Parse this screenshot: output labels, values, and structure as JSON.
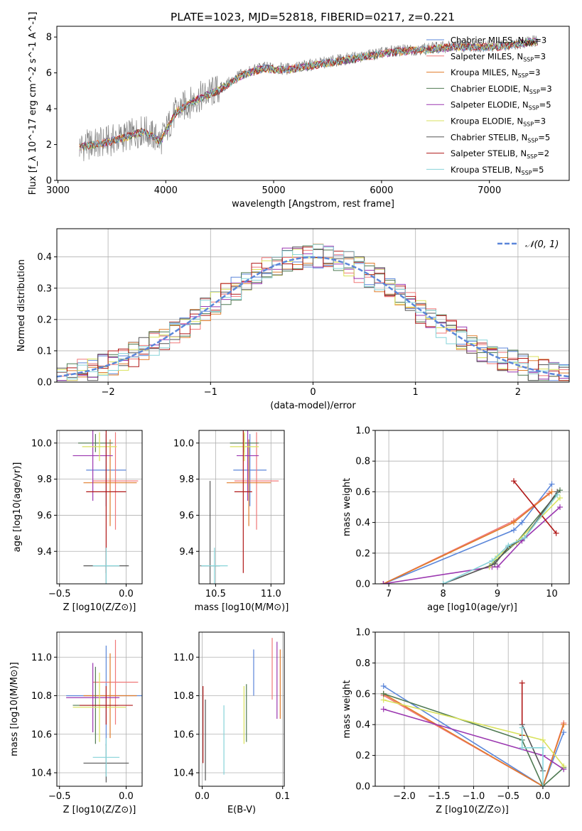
{
  "figure": {
    "title": "PLATE=1023, MJD=52818, FIBERID=0217, z=0.221"
  },
  "colors": {
    "chabrier_miles": "#5b86d9",
    "salpeter_miles": "#f07878",
    "kroupa_miles": "#e07b2a",
    "chabrier_elodie": "#4f7a52",
    "salpeter_elodie": "#9b37b0",
    "kroupa_elodie": "#d9e25c",
    "chabrier_stelib": "#555555",
    "salpeter_stelib": "#b01818",
    "kroupa_stelib": "#86d3d8",
    "normal_curve": "#5b86d9",
    "raw_spectrum": "#808080"
  },
  "chart_data": [
    {
      "id": "spectrum",
      "type": "line",
      "xlabel": "wavelength [Angstrom, rest frame]",
      "ylabel": "Flux [f_λ 10^-17 erg cm^-2 s^-1 A^-1]",
      "xlim": [
        2990,
        7740
      ],
      "ylim": [
        0,
        8.6
      ],
      "xticks": [
        3000,
        4000,
        5000,
        6000,
        7000
      ],
      "yticks": [
        0,
        2,
        4,
        6,
        8
      ],
      "legend_position": "top-right",
      "legend": [
        {
          "label": "Chabrier MILES, N",
          "sub": "SSP",
          "suffix": "=3"
        },
        {
          "label": "Salpeter MILES, N",
          "sub": "SSP",
          "suffix": "=3"
        },
        {
          "label": "Kroupa MILES, N",
          "sub": "SSP",
          "suffix": "=3"
        },
        {
          "label": "Chabrier ELODIE, N",
          "sub": "SSP",
          "suffix": "=3"
        },
        {
          "label": "Salpeter ELODIE, N",
          "sub": "SSP",
          "suffix": "=5"
        },
        {
          "label": "Kroupa ELODIE, N",
          "sub": "SSP",
          "suffix": "=3"
        },
        {
          "label": "Chabrier STELIB, N",
          "sub": "SSP",
          "suffix": "=5"
        },
        {
          "label": "Salpeter STELIB, N",
          "sub": "SSP",
          "suffix": "=2"
        },
        {
          "label": "Kroupa STELIB, N",
          "sub": "SSP",
          "suffix": "=5"
        }
      ],
      "continuum": [
        [
          3200,
          1.9
        ],
        [
          3400,
          2.1
        ],
        [
          3600,
          2.4
        ],
        [
          3800,
          2.8
        ],
        [
          3950,
          2.2
        ],
        [
          4100,
          3.9
        ],
        [
          4300,
          4.6
        ],
        [
          4500,
          5.1
        ],
        [
          4700,
          5.9
        ],
        [
          4900,
          6.3
        ],
        [
          5100,
          6.2
        ],
        [
          5300,
          6.4
        ],
        [
          5500,
          6.6
        ],
        [
          5700,
          6.8
        ],
        [
          5900,
          7.0
        ],
        [
          6100,
          7.2
        ],
        [
          6300,
          7.3
        ],
        [
          6500,
          7.4
        ],
        [
          6700,
          7.5
        ],
        [
          6900,
          7.5
        ],
        [
          7100,
          7.5
        ],
        [
          7300,
          7.7
        ],
        [
          7450,
          7.8
        ]
      ]
    },
    {
      "id": "residuals",
      "type": "line",
      "xlabel": "(data-model)/error",
      "ylabel": "Normed distribution",
      "xlim": [
        -2.5,
        2.5
      ],
      "ylim": [
        0,
        0.49
      ],
      "xticks": [
        -2,
        -1,
        0,
        1,
        2
      ],
      "yticks": [
        0.0,
        0.1,
        0.2,
        0.3,
        0.4
      ],
      "grid": true,
      "legend_position": "top-right",
      "legend": [
        {
          "label": "𝒩(0, 1)"
        }
      ],
      "normal_curve": {
        "mean": 0,
        "sigma": 1
      }
    },
    {
      "id": "age_vs_Z",
      "type": "scatter",
      "xlabel": "Z [log10(Z/Z⊙)]",
      "ylabel": "age [log10(age/yr)]",
      "xlim": [
        -0.52,
        0.12
      ],
      "ylim": [
        9.22,
        10.07
      ],
      "xticks": [
        -0.5,
        0.0
      ],
      "yticks": [
        9.4,
        9.6,
        9.8,
        10.0
      ],
      "grid": true,
      "points": [
        {
          "s": "chabrier_miles",
          "x": -0.15,
          "xe": 0.15,
          "y": 9.85,
          "ye": 0.2
        },
        {
          "s": "salpeter_miles",
          "x": -0.08,
          "xe": 0.17,
          "y": 9.79,
          "ye": 0.27
        },
        {
          "s": "kroupa_miles",
          "x": -0.12,
          "xe": 0.2,
          "y": 9.78,
          "ye": 0.24
        },
        {
          "s": "chabrier_elodie",
          "x": -0.23,
          "xe": 0.13,
          "y": 10.0,
          "ye": 0.05
        },
        {
          "s": "salpeter_elodie",
          "x": -0.25,
          "xe": 0.15,
          "y": 9.93,
          "ye": 0.25
        },
        {
          "s": "kroupa_elodie",
          "x": -0.2,
          "xe": 0.13,
          "y": 9.98,
          "ye": 0.08
        },
        {
          "s": "chabrier_stelib",
          "x": -0.15,
          "xe": 0.17,
          "y": 9.32,
          "ye": 0.1
        },
        {
          "s": "salpeter_stelib",
          "x": -0.15,
          "xe": 0.15,
          "y": 9.73,
          "ye": 0.45
        },
        {
          "s": "kroupa_stelib",
          "x": -0.15,
          "xe": 0.1,
          "y": 9.32,
          "ye": 0.1
        }
      ]
    },
    {
      "id": "age_vs_mass",
      "type": "scatter",
      "xlabel": "mass [log10(M/M⊙)]",
      "ylabel": "",
      "xlim": [
        10.35,
        11.12
      ],
      "ylim": [
        9.22,
        10.07
      ],
      "xticks": [
        10.5,
        11.0
      ],
      "yticks": [
        9.4,
        9.6,
        9.8,
        10.0
      ],
      "grid": true,
      "points": [
        {
          "s": "chabrier_miles",
          "x": 10.81,
          "xe": 0.15,
          "y": 9.85,
          "ye": 0.2
        },
        {
          "s": "salpeter_miles",
          "x": 10.87,
          "xe": 0.2,
          "y": 9.79,
          "ye": 0.27
        },
        {
          "s": "kroupa_miles",
          "x": 10.8,
          "xe": 0.2,
          "y": 9.78,
          "ye": 0.24
        },
        {
          "s": "chabrier_elodie",
          "x": 10.76,
          "xe": 0.13,
          "y": 10.0,
          "ye": 0.05
        },
        {
          "s": "salpeter_elodie",
          "x": 10.79,
          "xe": 0.1,
          "y": 9.93,
          "ye": 0.25
        },
        {
          "s": "kroupa_elodie",
          "x": 10.76,
          "xe": 0.13,
          "y": 9.98,
          "ye": 0.08
        },
        {
          "s": "chabrier_stelib",
          "x": 10.45,
          "xe": 0.09,
          "y": 9.32,
          "ye": 0.47
        },
        {
          "s": "salpeter_stelib",
          "x": 10.75,
          "xe": 0.08,
          "y": 9.73,
          "ye": 0.45
        },
        {
          "s": "kroupa_stelib",
          "x": 10.49,
          "xe": 0.12,
          "y": 9.32,
          "ye": 0.1
        }
      ]
    },
    {
      "id": "mass_weight_vs_age",
      "type": "line",
      "xlabel": "age [log10(age/yr)]",
      "ylabel": "mass weight",
      "xlim": [
        6.75,
        10.32
      ],
      "ylim": [
        0,
        1
      ],
      "xticks": [
        7,
        8,
        9,
        10
      ],
      "yticks": [
        0.0,
        0.2,
        0.4,
        0.6,
        0.8,
        1.0
      ],
      "grid": true,
      "series": [
        {
          "s": "chabrier_miles",
          "x": [
            6.9,
            9.3,
            9.45,
            10.0
          ],
          "y": [
            0.0,
            0.35,
            0.4,
            0.65
          ]
        },
        {
          "s": "salpeter_miles",
          "x": [
            6.9,
            9.3,
            9.95
          ],
          "y": [
            0.0,
            0.41,
            0.59
          ]
        },
        {
          "s": "kroupa_miles",
          "x": [
            6.9,
            9.3,
            10.0
          ],
          "y": [
            0.0,
            0.4,
            0.6
          ]
        },
        {
          "s": "chabrier_elodie",
          "x": [
            8.9,
            9.35,
            10.15
          ],
          "y": [
            0.13,
            0.27,
            0.61
          ]
        },
        {
          "s": "salpeter_elodie",
          "x": [
            6.9,
            8.9,
            9.0,
            9.45,
            10.15
          ],
          "y": [
            0.0,
            0.11,
            0.11,
            0.28,
            0.5
          ]
        },
        {
          "s": "kroupa_elodie",
          "x": [
            8.85,
            9.0,
            9.35,
            10.15
          ],
          "y": [
            0.11,
            0.18,
            0.27,
            0.56
          ]
        },
        {
          "s": "chabrier_stelib",
          "x": [
            8.0,
            8.95,
            9.2,
            9.5,
            10.1
          ],
          "y": [
            0.0,
            0.13,
            0.24,
            0.3,
            0.6
          ]
        },
        {
          "s": "salpeter_stelib",
          "x": [
            9.3,
            10.08
          ],
          "y": [
            0.67,
            0.33
          ]
        },
        {
          "s": "kroupa_stelib",
          "x": [
            8.0,
            8.9,
            9.2,
            9.5,
            10.1
          ],
          "y": [
            0.0,
            0.15,
            0.25,
            0.3,
            0.58
          ]
        }
      ]
    },
    {
      "id": "mass_vs_Z",
      "type": "scatter",
      "xlabel": "Z [log10(Z/Z⊙)]",
      "ylabel": "mass [log10(M/M⊙)]",
      "xlim": [
        -0.52,
        0.12
      ],
      "ylim": [
        10.33,
        11.13
      ],
      "xticks": [
        -0.5,
        0.0
      ],
      "yticks": [
        10.4,
        10.6,
        10.8,
        11.0
      ],
      "grid": true,
      "points": [
        {
          "s": "chabrier_miles",
          "x": -0.15,
          "xe": 0.3,
          "y": 10.8,
          "ye": 0.26
        },
        {
          "s": "salpeter_miles",
          "x": -0.08,
          "xe": 0.17,
          "y": 10.87,
          "ye": 0.22
        },
        {
          "s": "kroupa_miles",
          "x": -0.12,
          "xe": 0.2,
          "y": 10.8,
          "ye": 0.22
        },
        {
          "s": "chabrier_elodie",
          "x": -0.23,
          "xe": 0.17,
          "y": 10.75,
          "ye": 0.2
        },
        {
          "s": "salpeter_elodie",
          "x": -0.25,
          "xe": 0.2,
          "y": 10.79,
          "ye": 0.18
        },
        {
          "s": "kroupa_elodie",
          "x": -0.2,
          "xe": 0.2,
          "y": 10.74,
          "ye": 0.18
        },
        {
          "s": "chabrier_stelib",
          "x": -0.15,
          "xe": 0.17,
          "y": 10.45,
          "ye": 0.1
        },
        {
          "s": "salpeter_stelib",
          "x": -0.15,
          "xe": 0.2,
          "y": 10.75,
          "ye": 0.1
        },
        {
          "s": "kroupa_stelib",
          "x": -0.15,
          "xe": 0.1,
          "y": 10.48,
          "ye": 0.1
        }
      ]
    },
    {
      "id": "mass_vs_EBV",
      "type": "scatter",
      "xlabel": "E(B-V)",
      "ylabel": "",
      "xlim": [
        -0.004,
        0.102
      ],
      "ylim": [
        10.33,
        11.13
      ],
      "xticks": [
        0.0,
        0.1
      ],
      "yticks": [
        10.4,
        10.6,
        10.8,
        11.0
      ],
      "grid": true,
      "points": [
        {
          "s": "chabrier_miles",
          "x": 0.064,
          "xe": 0,
          "y": 10.92,
          "ye": 0.12
        },
        {
          "s": "salpeter_miles",
          "x": 0.087,
          "xe": 0,
          "y": 10.94,
          "ye": 0.16
        },
        {
          "s": "kroupa_miles",
          "x": 0.097,
          "xe": 0,
          "y": 10.86,
          "ye": 0.18
        },
        {
          "s": "chabrier_elodie",
          "x": 0.055,
          "xe": 0,
          "y": 10.71,
          "ye": 0.15
        },
        {
          "s": "salpeter_elodie",
          "x": 0.093,
          "xe": 0,
          "y": 10.88,
          "ye": 0.2
        },
        {
          "s": "kroupa_elodie",
          "x": 0.052,
          "xe": 0,
          "y": 10.7,
          "ye": 0.15
        },
        {
          "s": "chabrier_stelib",
          "x": 0.004,
          "xe": 0,
          "y": 10.57,
          "ye": 0.21
        },
        {
          "s": "salpeter_stelib",
          "x": 0.001,
          "xe": 0,
          "y": 10.65,
          "ye": 0.2
        },
        {
          "s": "kroupa_stelib",
          "x": 0.027,
          "xe": 0,
          "y": 10.57,
          "ye": 0.18
        }
      ]
    },
    {
      "id": "mass_weight_vs_Z",
      "type": "line",
      "xlabel": "Z [log10(Z/Z⊙)]",
      "ylabel": "mass weight",
      "xlim": [
        -2.42,
        0.38
      ],
      "ylim": [
        0,
        1
      ],
      "xticks": [
        -2.0,
        -1.5,
        -1.0,
        -0.5,
        0.0
      ],
      "yticks": [
        0.0,
        0.2,
        0.4,
        0.6,
        0.8,
        1.0
      ],
      "grid": true,
      "series": [
        {
          "s": "chabrier_miles",
          "x": [
            -2.3,
            0.0,
            0.3
          ],
          "y": [
            0.65,
            0.0,
            0.35
          ]
        },
        {
          "s": "salpeter_miles",
          "x": [
            -2.3,
            0.0,
            0.3
          ],
          "y": [
            0.59,
            0.0,
            0.41
          ]
        },
        {
          "s": "kroupa_miles",
          "x": [
            -2.3,
            0.0,
            0.3
          ],
          "y": [
            0.6,
            0.0,
            0.4
          ]
        },
        {
          "s": "chabrier_elodie",
          "x": [
            -2.3,
            -0.3,
            0.0,
            0.3
          ],
          "y": [
            0.6,
            0.3,
            0.0,
            0.12
          ]
        },
        {
          "s": "salpeter_elodie",
          "x": [
            -2.3,
            0.0,
            0.3
          ],
          "y": [
            0.5,
            0.2,
            0.11
          ]
        },
        {
          "s": "kroupa_elodie",
          "x": [
            -2.3,
            0.0,
            0.3
          ],
          "y": [
            0.56,
            0.3,
            0.13
          ]
        },
        {
          "s": "chabrier_stelib",
          "x": [
            -0.3,
            0.0
          ],
          "y": [
            0.4,
            0.1
          ]
        },
        {
          "s": "salpeter_stelib",
          "x": [
            -0.3,
            -0.3
          ],
          "y": [
            0.67,
            0.33
          ]
        },
        {
          "s": "kroupa_stelib",
          "x": [
            -0.3,
            -0.3,
            0.0,
            0.0
          ],
          "y": [
            0.38,
            0.25,
            0.25,
            0.0
          ]
        }
      ]
    }
  ]
}
